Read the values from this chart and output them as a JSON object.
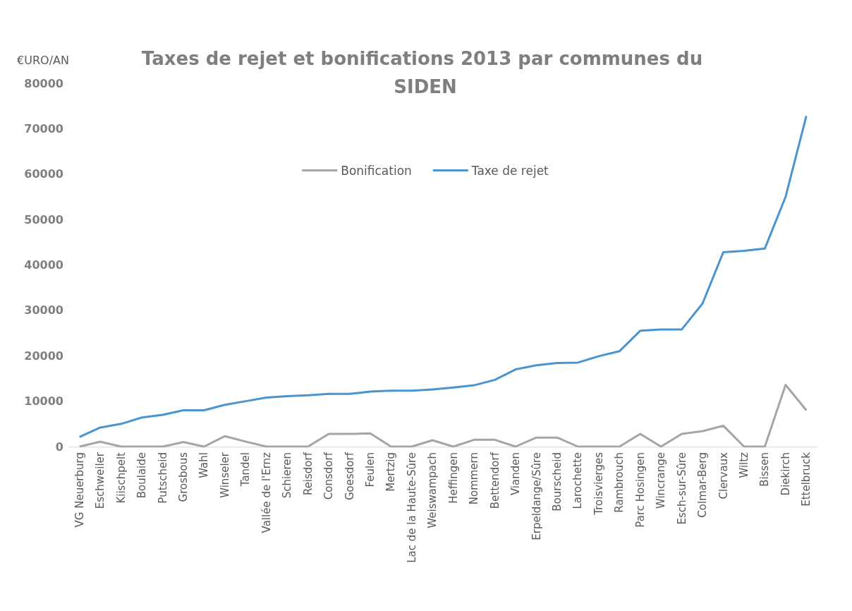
{
  "chart_data": {
    "type": "line",
    "title": "Taxes de rejet et bonifications 2013 par communes du SIDEN",
    "ylabel": "€URO/AN",
    "categories": [
      "VG Neuerburg",
      "Eschweiler",
      "Kiischpelt",
      "Boulaide",
      "Putscheid",
      "Grosbous",
      "Wahl",
      "Winseler",
      "Tandel",
      "Vallée de l'Ernz",
      "Schieren",
      "Reisdorf",
      "Consdorf",
      "Goesdorf",
      "Feulen",
      "Mertzig",
      "Lac de la Haute-Sûre",
      "Weiswampach",
      "Heffingen",
      "Nommern",
      "Bettendorf",
      "Vianden",
      "Erpeldange/Sûre",
      "Bourscheid",
      "Larochette",
      "Troisvierges",
      "Rambrouch",
      "Parc Hosingen",
      "Wincrange",
      "Esch-sur-Sûre",
      "Colmar-Berg",
      "Clervaux",
      "Wiltz",
      "Bissen",
      "Diekirch",
      "Ettelbruck"
    ],
    "series": [
      {
        "name": "Bonification",
        "color": "#a5a5a5",
        "values": [
          0,
          1100,
          0,
          0,
          0,
          1000,
          0,
          2300,
          1100,
          0,
          0,
          0,
          2800,
          2800,
          2900,
          0,
          0,
          1400,
          0,
          1500,
          1500,
          0,
          2000,
          2000,
          0,
          0,
          0,
          2800,
          0,
          2800,
          3400,
          4600,
          0,
          0,
          13600,
          8000
        ]
      },
      {
        "name": "Taxe de rejet",
        "color": "#4a94cf",
        "values": [
          2100,
          4200,
          5000,
          6400,
          7000,
          8000,
          8000,
          9200,
          10000,
          10800,
          11100,
          11300,
          11600,
          11600,
          12100,
          12300,
          12300,
          12600,
          13000,
          13500,
          14700,
          17000,
          17900,
          18400,
          18500,
          19900,
          21000,
          25500,
          25800,
          25800,
          31500,
          42800,
          43100,
          43600,
          55000,
          72800
        ]
      }
    ],
    "ylim": [
      0,
      80000
    ],
    "yticks": [
      0,
      10000,
      20000,
      30000,
      40000,
      50000,
      60000,
      70000,
      80000
    ],
    "grid": false,
    "legend": "top",
    "marker": "none"
  }
}
